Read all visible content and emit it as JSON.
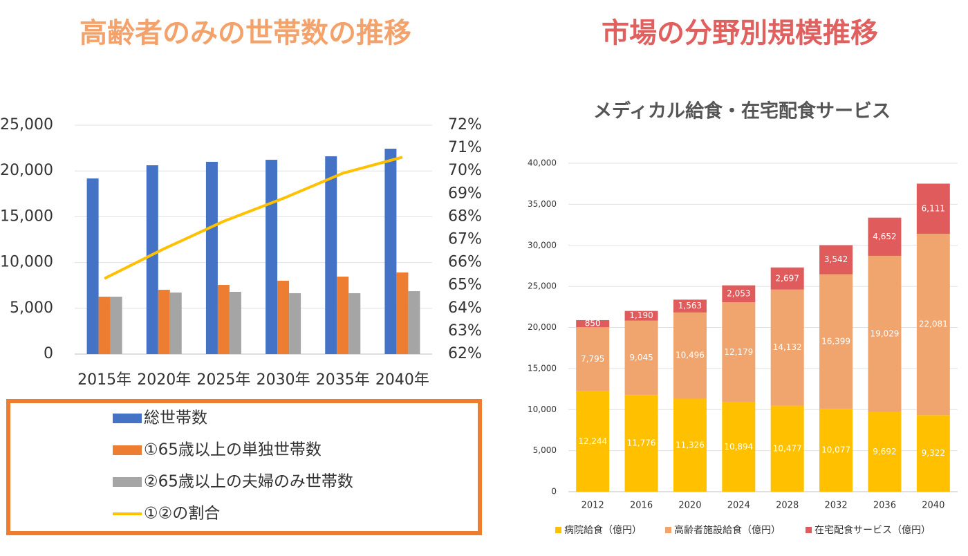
{
  "headings": [
    "高齢者のみの世帯数の推移",
    "市場の分野別規模推移"
  ],
  "chart_data": [
    {
      "type": "bar",
      "categories": [
        "2015年",
        "2020年",
        "2025年",
        "2030年",
        "2035年",
        "2040年"
      ],
      "series": [
        {
          "name": "総世帯数",
          "color": "#4472c4",
          "values": [
            19180,
            20620,
            21000,
            21220,
            21600,
            22430
          ]
        },
        {
          "name": "①65歳以上の単独世帯数",
          "color": "#ed7d31",
          "values": [
            6270,
            7020,
            7550,
            8010,
            8460,
            8910
          ]
        },
        {
          "name": "②65歳以上の夫婦のみ世帯数",
          "color": "#a5a5a5",
          "values": [
            6270,
            6720,
            6800,
            6650,
            6650,
            6870
          ]
        },
        {
          "name": "①②の割合",
          "color": "#ffc000",
          "type": "line",
          "axis": "y2",
          "values": [
            65.3,
            66.6,
            67.8,
            68.8,
            69.9,
            70.6
          ]
        }
      ],
      "ylim": [
        0,
        25000
      ],
      "yticks": [
        0,
        {
          "value": 5000,
          "label": "5,000"
        },
        {
          "value": 10000,
          "label": "10,000"
        },
        {
          "value": 15000,
          "label": "15,000"
        },
        {
          "value": 20000,
          "label": "20,000"
        },
        {
          "value": 25000,
          "label": "25,000"
        }
      ],
      "y2lim": [
        62,
        72
      ],
      "y2ticks": [
        {
          "value": 62,
          "label": "62%"
        },
        {
          "value": 63,
          "label": "63%"
        },
        {
          "value": 64,
          "label": "64%"
        },
        {
          "value": 65,
          "label": "65%"
        },
        {
          "value": 66,
          "label": "66%"
        },
        {
          "value": 67,
          "label": "67%"
        },
        {
          "value": 68,
          "label": "68%"
        },
        {
          "value": 69,
          "label": "69%"
        },
        {
          "value": 70,
          "label": "70%"
        },
        {
          "value": 71,
          "label": "71%"
        },
        {
          "value": 72,
          "label": "72%"
        }
      ],
      "grid": true,
      "legend": "bottom"
    },
    {
      "type": "stacked_bar",
      "title": "メディカル給食・在宅配食サービス",
      "categories": [
        "2012",
        "2016",
        "2020",
        "2024",
        "2028",
        "2032",
        "2036",
        "2040"
      ],
      "series": [
        {
          "name": "病院給食（億円）",
          "color": "#ffc000",
          "values": [
            12244,
            11776,
            11326,
            10894,
            10477,
            10077,
            9692,
            9322
          ],
          "value_labels": [
            "12,244",
            "11,776",
            "11,326",
            "10,894",
            "10,477",
            "10,077",
            "9,692",
            "9,322"
          ]
        },
        {
          "name": "高齢者施設給食（億円）",
          "color": "#f0a46e",
          "values": [
            7795,
            9045,
            10496,
            12179,
            14132,
            16399,
            19029,
            22081
          ],
          "value_labels": [
            "7,795",
            "9,045",
            "10,496",
            "12,179",
            "14,132",
            "16,399",
            "19,029",
            "22,081"
          ]
        },
        {
          "name": "在宅配食サービス（億円）",
          "color": "#e05c5c",
          "values": [
            850,
            1190,
            1563,
            2053,
            2697,
            3542,
            4652,
            6111
          ],
          "value_labels": [
            "850",
            "1,190",
            "1,563",
            "2,053",
            "2,697",
            "3,542",
            "4,652",
            "6,111"
          ]
        }
      ],
      "ylim": [
        0,
        40000
      ],
      "yticks": [
        0,
        {
          "value": 5000,
          "label": "5,000"
        },
        {
          "value": 10000,
          "label": "10,000"
        },
        {
          "value": 15000,
          "label": "15,000"
        },
        {
          "value": 20000,
          "label": "20,000"
        },
        {
          "value": 25000,
          "label": "25,000"
        },
        {
          "value": 30000,
          "label": "30,000"
        },
        {
          "value": 35000,
          "label": "35,000"
        },
        {
          "value": 40000,
          "label": "40,000"
        }
      ],
      "grid": true,
      "legend": "bottom"
    }
  ]
}
